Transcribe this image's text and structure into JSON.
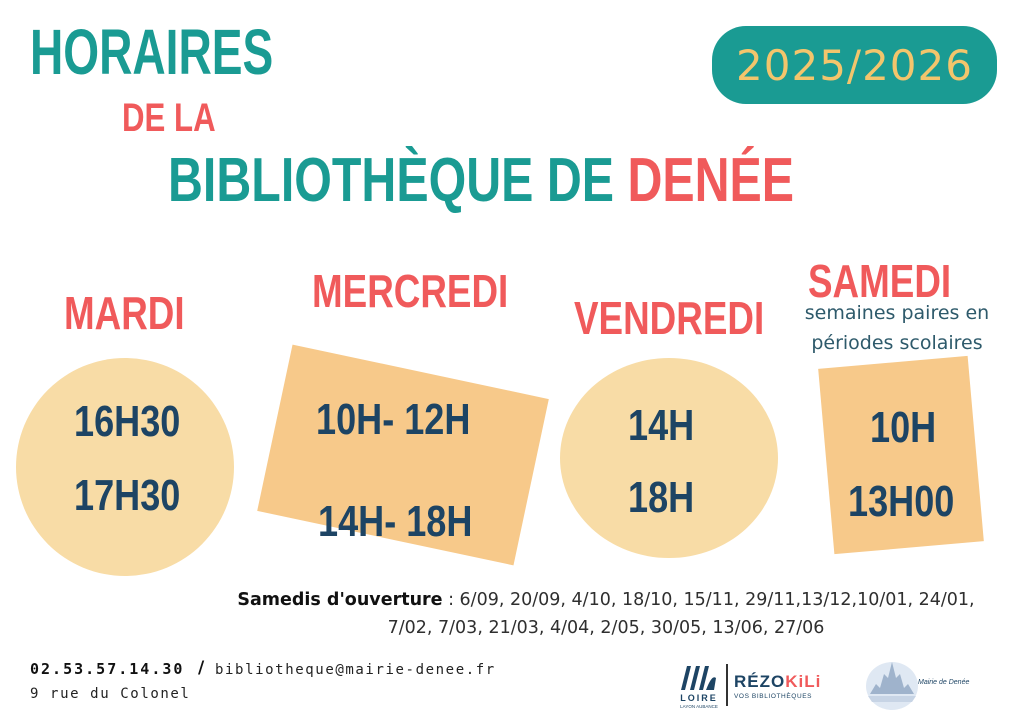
{
  "title": {
    "line1": "HORAIRES",
    "line2": "DE LA",
    "line3_main": "BIBLIOTHÈQUE DE ",
    "line3_accent": "DENÉE"
  },
  "year": "2025/2026",
  "days": {
    "mardi": {
      "label": "MARDI",
      "times": [
        "16H30",
        "17H30"
      ]
    },
    "mercredi": {
      "label": "MERCREDI",
      "times": [
        "10H- 12H",
        "14H- 18H"
      ]
    },
    "vendredi": {
      "label": "VENDREDI",
      "times": [
        "14H",
        "18H"
      ]
    },
    "samedi": {
      "label": "SAMEDI",
      "note_line1": "semaines paires en",
      "note_line2": "périodes scolaires",
      "times": [
        "10H",
        "13H00"
      ]
    }
  },
  "openings": {
    "label": "Samedis d'ouverture",
    "dates_line1": " : 6/09, 20/09, 4/10, 18/10, 15/11, 29/11,13/12,10/01, 24/01,",
    "dates_line2": "7/02, 7/03, 21/03, 4/04, 2/05, 30/05, 13/06, 27/06"
  },
  "contact": {
    "phone": "02.53.57.14.30",
    "separator": "/",
    "email": "bibliotheque@mairie-denee.fr",
    "address": "9 rue du Colonel"
  },
  "logos": {
    "loire_text": "LOIRE",
    "loire_sub": "LAYON AUBANCE",
    "rezokili_main": "RÉZO",
    "rezokili_accent": "KiLi",
    "rezokili_sub": "VOS BIBLIOTHÈQUES",
    "mairie_text": "Mairie de Denée"
  },
  "colors": {
    "teal": "#1a9b93",
    "coral": "#f05a5b",
    "navy": "#1d4464",
    "peach": "#f8dca6",
    "orange": "#f7c98a",
    "gold": "#f3c56c"
  }
}
